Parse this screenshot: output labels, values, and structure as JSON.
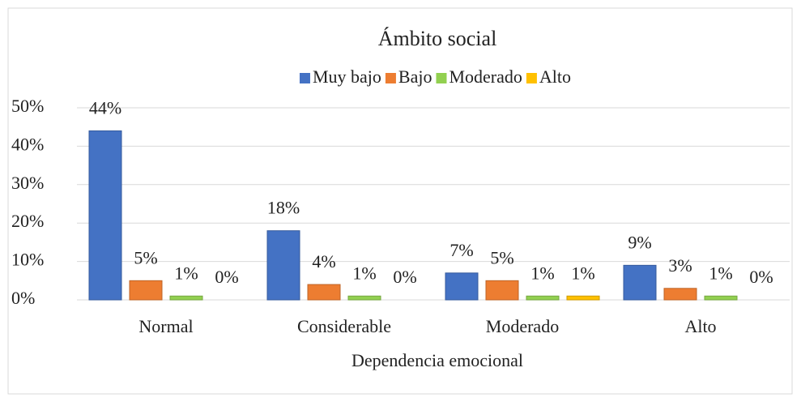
{
  "chart_data": {
    "type": "bar",
    "title": "Ámbito social",
    "x_label": "Dependencia emocional",
    "categories": [
      "Normal",
      "Considerable",
      "Moderado",
      "Alto"
    ],
    "series": [
      {
        "name": "Muy bajo",
        "color": "#4472c4",
        "values": [
          44,
          18,
          7,
          9
        ],
        "value_labels": [
          "44%",
          "18%",
          "7%",
          "9%"
        ]
      },
      {
        "name": "Bajo",
        "color": "#ed7d31",
        "values": [
          5,
          4,
          5,
          3
        ],
        "value_labels": [
          "5%",
          "4%",
          "5%",
          "3%"
        ]
      },
      {
        "name": "Moderado",
        "color": "#92d050",
        "values": [
          1,
          1,
          1,
          1
        ],
        "value_labels": [
          "1%",
          "1%",
          "1%",
          "1%"
        ]
      },
      {
        "name": "Alto",
        "color": "#ffc000",
        "values": [
          0,
          0,
          1,
          0
        ],
        "value_labels": [
          "0%",
          "0%",
          "1%",
          "0%"
        ]
      }
    ],
    "ylim": [
      0,
      50
    ],
    "yticks": [
      {
        "value": 0,
        "label": "0%"
      },
      {
        "value": 10,
        "label": "10%"
      },
      {
        "value": 20,
        "label": "20%"
      },
      {
        "value": 30,
        "label": "30%"
      },
      {
        "value": 40,
        "label": "40%"
      },
      {
        "value": 50,
        "label": "50%"
      }
    ],
    "grid": true,
    "legend": "top"
  }
}
